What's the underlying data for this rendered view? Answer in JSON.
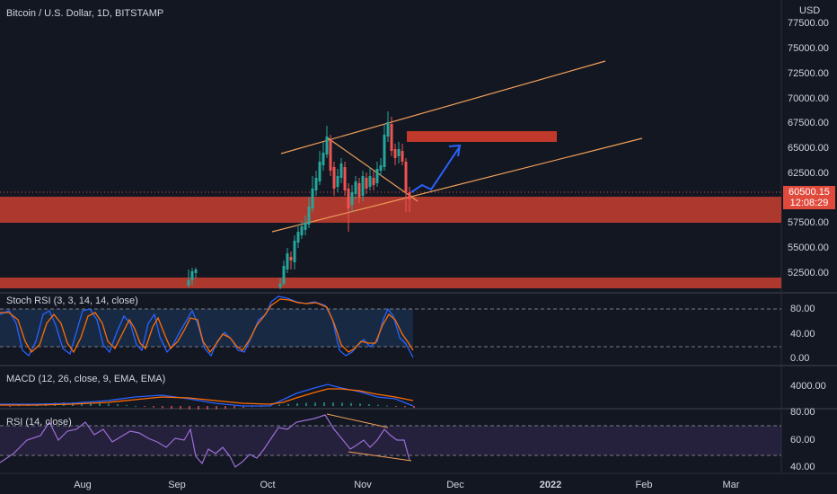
{
  "main_title": "Bitcoin / U.S. Dollar, 1D, BITSTAMP",
  "currency": "USD",
  "price_axis": [
    "77500.00",
    "75000.00",
    "72500.00",
    "70000.00",
    "67500.00",
    "65000.00",
    "62500.00",
    "57500.00",
    "55000.00",
    "52500.00"
  ],
  "current_price": "60500.15",
  "countdown": "12:08:29",
  "stoch_rsi": {
    "title": "Stoch RSI (3, 3, 14, 14, close)",
    "axis": [
      "80.00",
      "40.00",
      "0.00"
    ]
  },
  "macd": {
    "title": "MACD (12, 26, close, 9, EMA, EMA)",
    "axis": [
      "4000.00"
    ]
  },
  "rsi": {
    "title": "RSI (14, close)",
    "axis": [
      "80.00",
      "60.00",
      "40.00"
    ]
  },
  "dates": [
    {
      "label": "Aug",
      "bold": false
    },
    {
      "label": "Sep",
      "bold": false
    },
    {
      "label": "Oct",
      "bold": false
    },
    {
      "label": "Nov",
      "bold": false
    },
    {
      "label": "Dec",
      "bold": false
    },
    {
      "label": "2022",
      "bold": true
    },
    {
      "label": "Feb",
      "bold": false
    },
    {
      "label": "Mar",
      "bold": false
    }
  ],
  "colors": {
    "background": "#131722",
    "up": "#26a69a",
    "down": "#ef5350",
    "zone": "#c0392b",
    "trend": "#f0a05a",
    "arrow": "#2962ff",
    "stoch_k": "#2962ff",
    "stoch_d": "#ff6d00",
    "rsi_line": "#9c6fd6"
  }
}
